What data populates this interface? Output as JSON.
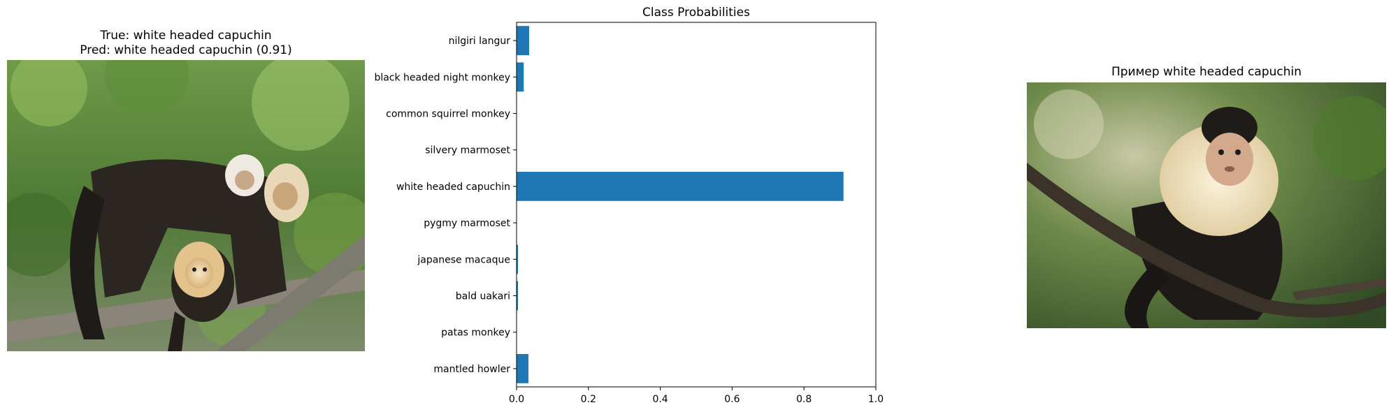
{
  "left_panel": {
    "title_true": "True: white headed capuchin",
    "title_pred": "Pred: white headed capuchin (0.91)",
    "image_icon": "capuchin-group-photo"
  },
  "right_panel": {
    "title": "Пример white headed capuchin",
    "image_icon": "capuchin-on-branch-photo"
  },
  "colors": {
    "bar": "#1f77b4",
    "axis": "#000000"
  },
  "chart_data": {
    "type": "bar",
    "orientation": "horizontal",
    "title": "Class Probabilities",
    "xlabel": "",
    "ylabel": "",
    "categories": [
      "nilgiri langur",
      "black headed night monkey",
      "common squirrel monkey",
      "silvery marmoset",
      "white headed capuchin",
      "pygmy marmoset",
      "japanese macaque",
      "bald uakari",
      "patas monkey",
      "mantled howler"
    ],
    "values": [
      0.035,
      0.02,
      0.0,
      0.0,
      0.91,
      0.0,
      0.004,
      0.004,
      0.0,
      0.033
    ],
    "xlim": [
      0,
      1.0
    ],
    "xticks": [
      "0.0",
      "0.2",
      "0.4",
      "0.6",
      "0.8",
      "1.0"
    ],
    "grid": false
  }
}
